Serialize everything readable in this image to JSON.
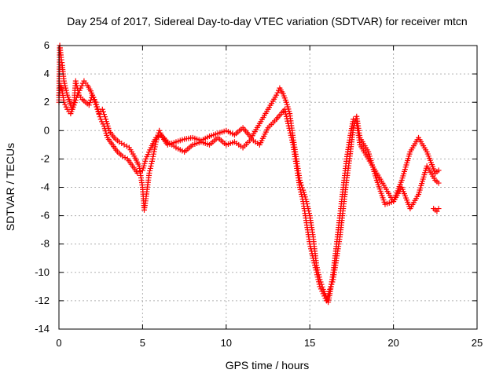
{
  "chart_data": {
    "type": "scatter",
    "title": "Day 254 of 2017, Sidereal Day-to-day VTEC variation (SDTVAR) for receiver mtcn",
    "xlabel": "GPS time / hours",
    "ylabel": "SDTVAR / TECUs",
    "xlim": [
      0,
      25
    ],
    "ylim": [
      -14,
      6
    ],
    "x_ticks": [
      0,
      5,
      10,
      15,
      20,
      25
    ],
    "y_ticks": [
      -14,
      -12,
      -10,
      -8,
      -6,
      -4,
      -2,
      0,
      2,
      4,
      6
    ],
    "grid": true,
    "legend": "none",
    "marker": "plus",
    "colors": {
      "series": "#ff0000"
    },
    "series": [
      {
        "x": [
          0.0,
          0.05,
          0.1,
          0.15,
          0.2,
          0.25,
          0.3,
          0.4,
          0.5,
          0.6,
          0.7,
          0.8,
          0.9,
          1.0,
          1.1,
          1.2,
          1.4,
          1.6,
          1.8,
          2.0,
          2.2,
          2.4,
          2.6,
          2.8,
          3.0,
          3.3,
          3.6,
          3.9,
          4.2,
          4.5,
          4.8,
          5.0,
          5.1,
          5.2,
          5.4,
          5.6,
          5.8,
          6.0,
          6.2,
          6.5,
          7.0,
          7.5,
          8.0,
          8.5,
          9.0,
          9.5,
          10.0,
          10.5,
          11.0,
          11.5,
          12.0,
          12.5,
          13.0,
          13.2,
          13.4,
          13.6,
          13.8,
          14.0,
          14.2,
          14.4,
          14.6,
          14.8,
          15.0,
          15.2,
          15.4,
          15.6,
          15.8,
          16.0,
          16.1,
          16.2,
          16.4,
          16.6,
          16.8,
          17.0,
          17.2,
          17.4,
          17.6,
          17.8,
          18.0,
          18.5,
          19.0,
          19.5,
          20.0,
          20.5,
          21.0,
          21.5,
          22.0,
          22.5,
          22.7
        ],
        "y": [
          2.0,
          6.0,
          5.5,
          5.0,
          4.6,
          4.0,
          3.5,
          3.0,
          2.5,
          2.2,
          1.8,
          1.5,
          2.0,
          3.5,
          3.0,
          2.5,
          2.2,
          2.0,
          1.8,
          2.5,
          2.0,
          1.2,
          1.5,
          0.8,
          0.0,
          -0.5,
          -0.8,
          -1.0,
          -1.2,
          -1.8,
          -2.5,
          -4.0,
          -5.6,
          -4.8,
          -3.0,
          -2.0,
          -0.8,
          0.0,
          -0.5,
          -1.0,
          -0.8,
          -0.6,
          -0.5,
          -0.7,
          -0.4,
          -0.2,
          0.0,
          -0.3,
          0.2,
          -0.5,
          0.5,
          1.5,
          2.5,
          3.0,
          2.6,
          2.0,
          1.2,
          -0.5,
          -2.0,
          -3.5,
          -4.2,
          -5.0,
          -6.0,
          -7.5,
          -9.5,
          -10.5,
          -11.2,
          -11.8,
          -12.1,
          -11.5,
          -10.0,
          -8.0,
          -6.0,
          -4.0,
          -2.0,
          -0.5,
          0.8,
          0.5,
          -1.0,
          -2.0,
          -3.0,
          -4.0,
          -5.0,
          -3.5,
          -1.5,
          -0.5,
          -1.5,
          -3.0,
          -2.8
        ]
      },
      {
        "x": [
          0.0,
          0.1,
          0.2,
          0.3,
          0.5,
          0.7,
          0.9,
          1.1,
          1.3,
          1.5,
          1.7,
          1.9,
          2.1,
          2.3,
          2.5,
          2.7,
          2.9,
          3.2,
          3.5,
          3.8,
          4.1,
          4.4,
          4.7,
          5.0,
          5.2,
          5.5,
          5.8,
          6.1,
          6.5,
          7.0,
          7.5,
          8.0,
          8.5,
          9.0,
          9.5,
          10.0,
          10.5,
          11.0,
          11.5,
          12.0,
          12.5,
          13.0,
          13.5,
          14.0,
          14.2,
          14.4,
          14.6,
          14.8,
          15.0,
          15.2,
          15.4,
          15.6,
          15.8,
          16.0,
          16.2,
          16.4,
          16.6,
          16.8,
          17.0,
          17.2,
          17.4,
          17.6,
          17.8,
          18.0,
          18.5,
          19.0,
          19.5,
          20.0,
          20.5,
          21.0,
          21.5,
          22.0,
          22.5,
          22.7
        ],
        "y": [
          2.5,
          3.2,
          2.8,
          2.0,
          1.5,
          1.2,
          1.8,
          2.5,
          3.0,
          3.5,
          3.2,
          2.8,
          2.2,
          1.5,
          0.8,
          0.3,
          -0.5,
          -1.0,
          -1.5,
          -1.8,
          -2.0,
          -2.5,
          -3.0,
          -2.8,
          -2.0,
          -1.2,
          -0.5,
          -0.3,
          -0.8,
          -1.2,
          -1.5,
          -1.0,
          -0.8,
          -1.0,
          -0.5,
          -1.0,
          -0.8,
          -1.2,
          -0.6,
          -1.0,
          0.2,
          0.8,
          1.5,
          -1.0,
          -2.5,
          -4.0,
          -5.0,
          -6.5,
          -8.0,
          -9.0,
          -10.0,
          -11.0,
          -11.5,
          -12.0,
          -11.2,
          -10.5,
          -9.0,
          -7.5,
          -5.5,
          -3.5,
          -1.8,
          0.2,
          1.0,
          -0.5,
          -1.5,
          -3.5,
          -5.2,
          -5.0,
          -4.0,
          -5.5,
          -4.5,
          -2.5,
          -3.5,
          -3.7
        ]
      },
      {
        "x": [
          22.4,
          22.5,
          22.6,
          22.7
        ],
        "y": [
          -5.5,
          -5.6,
          -5.7,
          -5.5
        ]
      }
    ]
  }
}
